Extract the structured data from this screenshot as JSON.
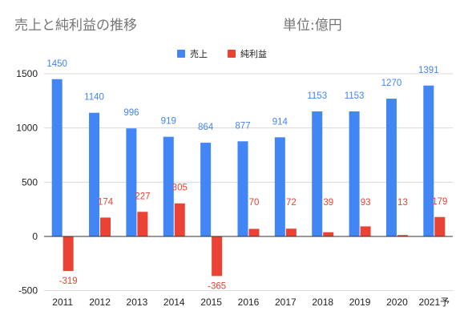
{
  "chart_data": {
    "type": "bar",
    "title": "売上と純利益の推移",
    "subtitle": "単位:億円",
    "categories": [
      "2011",
      "2012",
      "2013",
      "2014",
      "2015",
      "2016",
      "2017",
      "2018",
      "2019",
      "2020",
      "2021予"
    ],
    "series": [
      {
        "name": "売上",
        "color": "#4285f4",
        "values": [
          1450,
          1140,
          996,
          919,
          864,
          877,
          914,
          1153,
          1153,
          1270,
          1391
        ]
      },
      {
        "name": "純利益",
        "color": "#ea4335",
        "values": [
          -319,
          174,
          227,
          305,
          -365,
          70,
          72,
          39,
          93,
          13,
          179
        ]
      }
    ],
    "ylim": [
      -500,
      1500
    ],
    "yticks": [
      -500,
      0,
      500,
      1000,
      1500
    ],
    "xlabel": "",
    "ylabel": "",
    "grid": true,
    "legend": "top-center",
    "data_labels": true
  }
}
